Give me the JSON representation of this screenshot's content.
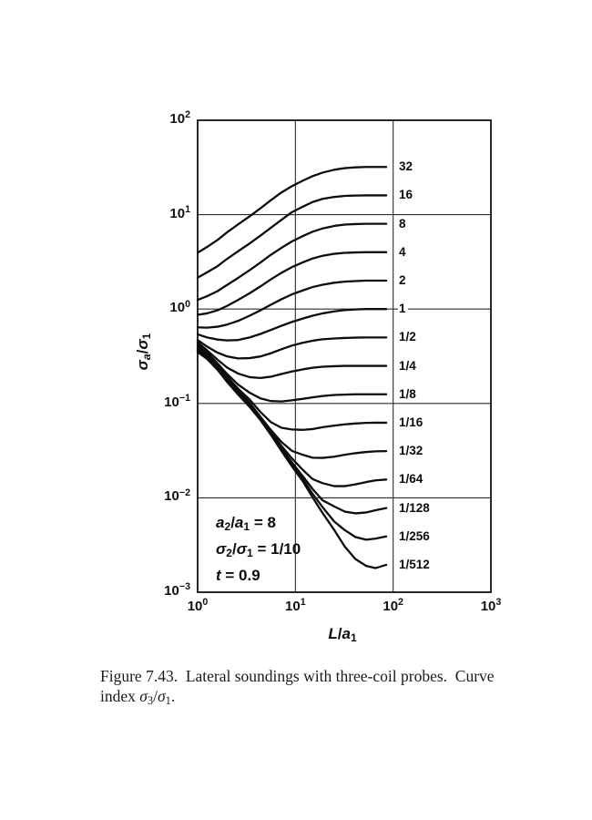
{
  "colors": {
    "curve": "#0d0d0d",
    "grid": "#2e2e2e",
    "border": "#111111",
    "text": "#111111",
    "background": "#ffffff"
  },
  "chart_data": {
    "type": "line",
    "x_scale": "log",
    "y_scale": "log",
    "x_range": [
      1,
      1000
    ],
    "y_range": [
      0.001,
      100
    ],
    "grid": "decade lines on",
    "legend_position": "labels at right ends of curves",
    "xlabel_segments": [
      {
        "t": "L",
        "it": true
      },
      {
        "t": "/"
      },
      {
        "t": "a",
        "it": true
      },
      {
        "t": "1",
        "sub": true
      }
    ],
    "ylabel_segments": [
      {
        "t": "σ",
        "it": true
      },
      {
        "t": "a",
        "sub": true,
        "it": true
      },
      {
        "t": "/"
      },
      {
        "t": "σ",
        "it": true
      },
      {
        "t": "1",
        "sub": true
      }
    ],
    "x_ticks": [
      {
        "value": 1,
        "segments": [
          {
            "t": "10"
          },
          {
            "t": "0",
            "sup": true
          }
        ]
      },
      {
        "value": 10,
        "segments": [
          {
            "t": "10"
          },
          {
            "t": "1",
            "sup": true
          }
        ]
      },
      {
        "value": 100,
        "segments": [
          {
            "t": "10"
          },
          {
            "t": "2",
            "sup": true
          }
        ]
      },
      {
        "value": 1000,
        "segments": [
          {
            "t": "10"
          },
          {
            "t": "3",
            "sup": true
          }
        ]
      }
    ],
    "y_ticks": [
      {
        "value": 100,
        "segments": [
          {
            "t": "10"
          },
          {
            "t": "2",
            "sup": true
          }
        ]
      },
      {
        "value": 10,
        "segments": [
          {
            "t": "10"
          },
          {
            "t": "1",
            "sup": true
          }
        ]
      },
      {
        "value": 1,
        "segments": [
          {
            "t": "10"
          },
          {
            "t": "0",
            "sup": true
          }
        ]
      },
      {
        "value": 0.1,
        "segments": [
          {
            "t": "10"
          },
          {
            "t": "−1",
            "sup": true
          }
        ]
      },
      {
        "value": 0.01,
        "segments": [
          {
            "t": "10"
          },
          {
            "t": "−2",
            "sup": true
          }
        ]
      },
      {
        "value": 0.001,
        "segments": [
          {
            "t": "10"
          },
          {
            "t": "−3",
            "sup": true
          }
        ]
      }
    ],
    "x_gridlines": [
      10,
      100
    ],
    "y_gridlines": [
      10,
      1,
      0.1,
      0.01
    ],
    "x_samples": [
      1,
      1.25,
      1.6,
      2,
      2.6,
      3.4,
      4.4,
      5.6,
      7.2,
      9.2,
      12,
      15,
      19,
      25,
      32,
      41,
      53,
      66,
      85
    ],
    "series": [
      {
        "label": "32",
        "value": 32,
        "y": [
          3.95,
          4.55,
          5.4,
          6.5,
          7.9,
          9.6,
          11.7,
          14.2,
          17.2,
          20.0,
          23.0,
          25.6,
          27.9,
          29.9,
          31.1,
          31.7,
          32,
          32,
          32
        ]
      },
      {
        "label": "16",
        "value": 16,
        "y": [
          2.15,
          2.45,
          2.85,
          3.4,
          4.1,
          4.95,
          6.0,
          7.25,
          8.8,
          10.6,
          12.2,
          13.6,
          14.7,
          15.4,
          15.8,
          15.95,
          16,
          16,
          16
        ]
      },
      {
        "label": "8",
        "value": 8,
        "y": [
          1.25,
          1.37,
          1.55,
          1.8,
          2.14,
          2.58,
          3.12,
          3.75,
          4.45,
          5.2,
          5.95,
          6.6,
          7.15,
          7.6,
          7.85,
          7.95,
          8,
          8,
          8
        ]
      },
      {
        "label": "4",
        "value": 4,
        "y": [
          0.87,
          0.9,
          0.97,
          1.08,
          1.25,
          1.47,
          1.74,
          2.06,
          2.42,
          2.78,
          3.13,
          3.43,
          3.67,
          3.85,
          3.94,
          3.98,
          4,
          4,
          4
        ]
      },
      {
        "label": "2",
        "value": 2,
        "y": [
          0.64,
          0.635,
          0.65,
          0.685,
          0.75,
          0.85,
          0.97,
          1.11,
          1.27,
          1.43,
          1.58,
          1.71,
          1.81,
          1.9,
          1.95,
          1.98,
          2,
          2,
          2
        ]
      },
      {
        "label": "1",
        "value": 1,
        "y": [
          0.54,
          0.5,
          0.475,
          0.465,
          0.47,
          0.5,
          0.545,
          0.6,
          0.665,
          0.73,
          0.795,
          0.85,
          0.9,
          0.945,
          0.975,
          0.99,
          1,
          1,
          1
        ]
      },
      {
        "label": "1/2",
        "value": 0.5,
        "y": [
          0.47,
          0.4,
          0.345,
          0.315,
          0.3,
          0.302,
          0.315,
          0.34,
          0.375,
          0.41,
          0.44,
          0.462,
          0.478,
          0.488,
          0.494,
          0.498,
          0.5,
          0.5,
          0.5
        ]
      },
      {
        "label": "1/4",
        "value": 0.25,
        "y": [
          0.445,
          0.365,
          0.29,
          0.24,
          0.207,
          0.19,
          0.186,
          0.192,
          0.205,
          0.218,
          0.23,
          0.239,
          0.245,
          0.248,
          0.25,
          0.25,
          0.25,
          0.25,
          0.25
        ]
      },
      {
        "label": "1/8",
        "value": 0.125,
        "y": [
          0.425,
          0.345,
          0.265,
          0.205,
          0.158,
          0.13,
          0.113,
          0.106,
          0.105,
          0.108,
          0.112,
          0.116,
          0.12,
          0.123,
          0.124,
          0.125,
          0.125,
          0.125,
          0.125
        ]
      },
      {
        "label": "1/16",
        "value": 0.0625,
        "y": [
          0.41,
          0.335,
          0.255,
          0.192,
          0.143,
          0.11,
          0.081,
          0.0635,
          0.0552,
          0.053,
          0.0525,
          0.0535,
          0.056,
          0.0582,
          0.06,
          0.0613,
          0.0622,
          0.0625,
          0.0625
        ]
      },
      {
        "label": "1/32",
        "value": 0.03125,
        "y": [
          0.395,
          0.325,
          0.247,
          0.184,
          0.136,
          0.102,
          0.072,
          0.0525,
          0.039,
          0.0315,
          0.0285,
          0.0266,
          0.0265,
          0.0273,
          0.0286,
          0.0297,
          0.0306,
          0.0311,
          0.03125
        ]
      },
      {
        "label": "1/64",
        "value": 0.015625,
        "y": [
          0.38,
          0.315,
          0.24,
          0.179,
          0.132,
          0.0985,
          0.0705,
          0.0505,
          0.0355,
          0.0262,
          0.0196,
          0.0158,
          0.0143,
          0.0133,
          0.0133,
          0.0139,
          0.0147,
          0.0153,
          0.015625
        ]
      },
      {
        "label": "1/128",
        "value": 0.0078125,
        "y": [
          0.37,
          0.308,
          0.235,
          0.175,
          0.129,
          0.096,
          0.069,
          0.049,
          0.0338,
          0.0238,
          0.0168,
          0.0124,
          0.0094,
          0.0081,
          0.00715,
          0.00685,
          0.007,
          0.0074,
          0.0078
        ]
      },
      {
        "label": "1/256",
        "value": 0.00390625,
        "y": [
          0.36,
          0.302,
          0.231,
          0.172,
          0.126,
          0.094,
          0.0678,
          0.0478,
          0.0325,
          0.0226,
          0.0157,
          0.011,
          0.00795,
          0.0056,
          0.00455,
          0.00385,
          0.0036,
          0.0037,
          0.0039
        ]
      },
      {
        "label": "1/512",
        "value": 0.001953125,
        "y": [
          0.35,
          0.296,
          0.227,
          0.169,
          0.124,
          0.092,
          0.0665,
          0.0467,
          0.0314,
          0.0216,
          0.0148,
          0.0101,
          0.0069,
          0.00455,
          0.00305,
          0.00225,
          0.0019,
          0.0018,
          0.00195
        ]
      }
    ]
  },
  "annotation": {
    "lines": [
      [
        {
          "t": "a",
          "it": true
        },
        {
          "t": "2",
          "sub": true
        },
        {
          "t": "/"
        },
        {
          "t": "a",
          "it": true
        },
        {
          "t": "1",
          "sub": true
        },
        {
          "t": " = 8"
        }
      ],
      [
        {
          "t": "σ",
          "it": true
        },
        {
          "t": "2",
          "sub": true
        },
        {
          "t": "/"
        },
        {
          "t": "σ",
          "it": true
        },
        {
          "t": "1",
          "sub": true
        },
        {
          "t": " = 1/10"
        }
      ],
      [
        {
          "t": "t",
          "it": true
        },
        {
          "t": " = 0.9"
        }
      ]
    ]
  },
  "caption": {
    "line1": "Figure 7.43.  Lateral soundings with three-coil probes.  Curve",
    "line2_segments": [
      {
        "t": "index "
      },
      {
        "t": "σ",
        "it": true
      },
      {
        "t": "3",
        "sub": true
      },
      {
        "t": "/"
      },
      {
        "t": "σ",
        "it": true
      },
      {
        "t": "1",
        "sub": true
      },
      {
        "t": "."
      }
    ]
  }
}
